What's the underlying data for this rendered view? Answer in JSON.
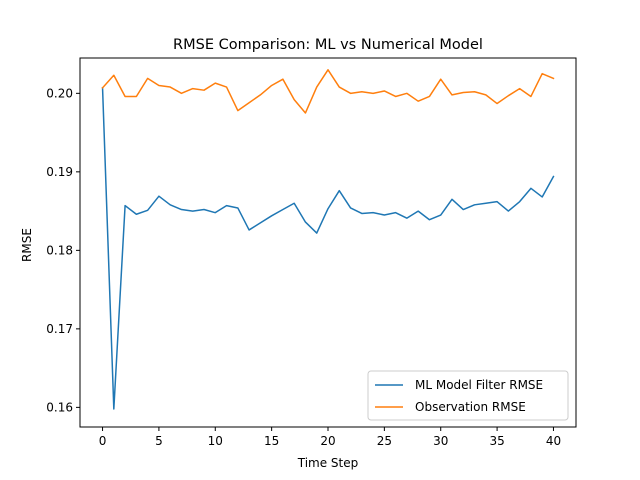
{
  "chart_data": {
    "type": "line",
    "title": "RMSE Comparison: ML vs Numerical Model",
    "xlabel": "Time Step",
    "ylabel": "RMSE",
    "xlim": [
      -2,
      42
    ],
    "ylim": [
      0.1575,
      0.2045
    ],
    "xticks": [
      0,
      5,
      10,
      15,
      20,
      25,
      30,
      35,
      40
    ],
    "yticks": [
      0.16,
      0.17,
      0.18,
      0.19,
      0.2
    ],
    "ytick_labels": [
      "0.16",
      "0.17",
      "0.18",
      "0.19",
      "0.20"
    ],
    "grid": false,
    "legend_position": "lower-right",
    "x": [
      0,
      1,
      2,
      3,
      4,
      5,
      6,
      7,
      8,
      9,
      10,
      11,
      12,
      13,
      14,
      15,
      16,
      17,
      18,
      19,
      20,
      21,
      22,
      23,
      24,
      25,
      26,
      27,
      28,
      29,
      30,
      31,
      32,
      33,
      34,
      35,
      36,
      37,
      38,
      39,
      40
    ],
    "series": [
      {
        "name": "ML Model Filter RMSE",
        "color": "#1f77b4",
        "values": [
          0.2007,
          0.1598,
          0.1857,
          0.1846,
          0.1851,
          0.1869,
          0.1858,
          0.1852,
          0.185,
          0.1852,
          0.1848,
          0.1857,
          0.1854,
          0.1826,
          0.1835,
          0.1844,
          0.1852,
          0.186,
          0.1836,
          0.1822,
          0.1853,
          0.1876,
          0.1854,
          0.1847,
          0.1848,
          0.1845,
          0.1848,
          0.1841,
          0.185,
          0.1839,
          0.1845,
          0.1865,
          0.1852,
          0.1858,
          0.186,
          0.1862,
          0.185,
          0.1862,
          0.1879,
          0.1868,
          0.1894
        ]
      },
      {
        "name": "Observation RMSE",
        "color": "#ff7f0e",
        "values": [
          0.2007,
          0.2023,
          0.1996,
          0.1996,
          0.2019,
          0.201,
          0.2008,
          0.2,
          0.2006,
          0.2004,
          0.2013,
          0.2008,
          0.1978,
          0.1988,
          0.1998,
          0.201,
          0.2018,
          0.1992,
          0.1975,
          0.2008,
          0.203,
          0.2008,
          0.2,
          0.2002,
          0.2,
          0.2003,
          0.1996,
          0.2,
          0.199,
          0.1996,
          0.2018,
          0.1998,
          0.2001,
          0.2002,
          0.1998,
          0.1987,
          0.1997,
          0.2006,
          0.1996,
          0.2025,
          0.2019
        ]
      }
    ]
  }
}
